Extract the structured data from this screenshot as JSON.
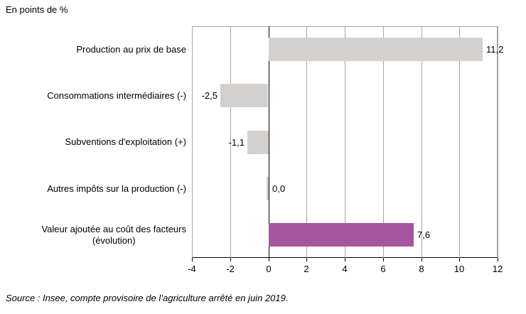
{
  "title": "En points de %",
  "source": "Source : Insee, compte provisoire de l’agriculture arrêté en juin 2019.",
  "colors": {
    "bar_default": "#d3d0ce",
    "bar_highlight": "#a4559d",
    "gridline": "#a6a6a6",
    "axis": "#000000"
  },
  "chart_data": {
    "type": "bar",
    "orientation": "horizontal",
    "title": "En points de %",
    "xlabel": "",
    "ylabel": "",
    "xlim": [
      -4,
      12
    ],
    "xticks": [
      -4,
      -2,
      0,
      2,
      4,
      6,
      8,
      10,
      12
    ],
    "xtick_labels": [
      "-4",
      "-2",
      "0",
      "2",
      "4",
      "6",
      "8",
      "10",
      "12"
    ],
    "grid": true,
    "legend": false,
    "categories": [
      [
        "Production au prix de base"
      ],
      [
        "Consommations intermédiaires (-)"
      ],
      [
        "Subventions d'exploitation (+)"
      ],
      [
        "Autres impôts sur la production (-)"
      ],
      [
        "Valeur ajoutée au coût des facteurs",
        "(évolution)"
      ]
    ],
    "values": [
      11.2,
      -2.5,
      -1.1,
      0.0,
      7.6
    ],
    "value_labels": [
      "11,2",
      "-2,5",
      "-1,1",
      "0,0",
      "7,6"
    ],
    "highlight_index": 4
  }
}
